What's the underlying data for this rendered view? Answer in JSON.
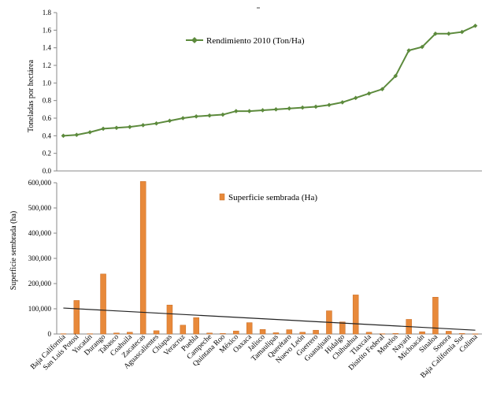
{
  "chart_data": [
    {
      "type": "line",
      "title": "",
      "ylabel": "Toneladas por hectárea",
      "xlabel": "",
      "ylim": [
        0,
        1.8
      ],
      "yticks": [
        "0.0",
        "0.2",
        "0.4",
        "0.6",
        "0.8",
        "1.0",
        "1.2",
        "1.4",
        "1.6",
        "1.8"
      ],
      "legend_position": "top-center",
      "grid": false,
      "series": [
        {
          "name": "Rendimiento 2010 (Ton/Ha)",
          "color": "#5c8a3c",
          "values": [
            0.4,
            0.41,
            0.44,
            0.48,
            0.49,
            0.5,
            0.52,
            0.54,
            0.57,
            0.6,
            0.62,
            0.63,
            0.64,
            0.68,
            0.68,
            0.69,
            0.7,
            0.71,
            0.72,
            0.73,
            0.75,
            0.78,
            0.83,
            0.88,
            0.93,
            1.08,
            1.37,
            1.41,
            1.56,
            1.56,
            1.58,
            1.65
          ]
        }
      ]
    },
    {
      "type": "bar",
      "title": "",
      "ylabel": "Superficie sembrada (ha)",
      "xlabel": "",
      "ylim": [
        0,
        600000
      ],
      "yticks": [
        "0",
        "100,000",
        "200,000",
        "300,000",
        "400,000",
        "500,000",
        "600,000"
      ],
      "legend_position": "top-center",
      "grid": false,
      "categories": [
        "Baja California",
        "San Luis Potosí",
        "Yucatán",
        "Durango",
        "Tabasco",
        "Coahuila",
        "Zacatecas",
        "Aguascalientes",
        "Chiapas",
        "Veracruz",
        "Puebla",
        "Campeche",
        "Quintana Roo",
        "México",
        "Oaxaca",
        "Jalisco",
        "Tamaulipas",
        "Querétaro",
        "Nuevo León",
        "Guerrero",
        "Guanajuato",
        "Hidalgo",
        "Chihuahua",
        "Tlaxcala",
        "Distrito Federal",
        "Morelos",
        "Nayarit",
        "Michoacán",
        "Sinaloa",
        "Sonora",
        "Baja California Sur",
        "Colima"
      ],
      "series": [
        {
          "name": "Superficie sembrada (Ha)",
          "color": "#e8893a",
          "values": [
            1000,
            133000,
            1000,
            238000,
            4000,
            7000,
            605000,
            13000,
            115000,
            35000,
            65000,
            4000,
            2000,
            12000,
            45000,
            18000,
            5000,
            17000,
            7000,
            15000,
            92000,
            48000,
            155000,
            7000,
            1000,
            2000,
            58000,
            9000,
            146000,
            11000,
            2000,
            500
          ]
        }
      ],
      "trendline": {
        "start_value": 103000,
        "end_value": 15000,
        "color": "#222222"
      }
    }
  ]
}
